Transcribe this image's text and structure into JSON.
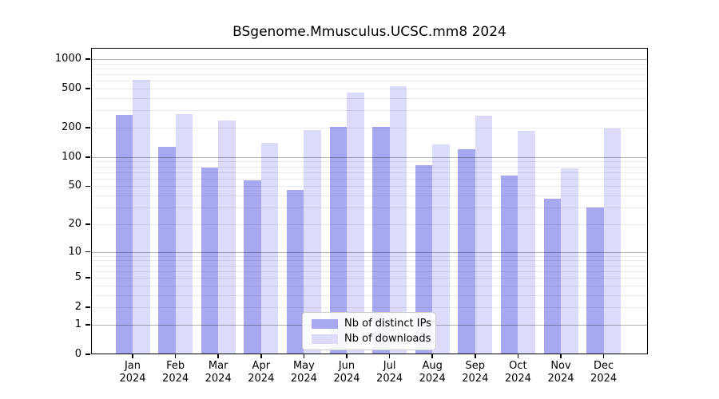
{
  "title": "BSgenome.Mmusculus.UCSC.mm8 2024",
  "colors": {
    "distinct_ips_bar": "#a8a8f0",
    "downloads_bar": "#dcdcfa",
    "axis": "#000000",
    "legend_border": "#cccccc"
  },
  "legend": {
    "items": [
      {
        "label": "Nb of distinct IPs",
        "color": "#a8a8f0"
      },
      {
        "label": "Nb of downloads",
        "color": "#dcdcfa"
      }
    ]
  },
  "chart_data": {
    "type": "bar",
    "title": "BSgenome.Mmusculus.UCSC.mm8 2024",
    "categories": [
      "Jan",
      "Feb",
      "Mar",
      "Apr",
      "May",
      "Jun",
      "Jul",
      "Aug",
      "Sep",
      "Oct",
      "Nov",
      "Dec"
    ],
    "year_label": "2024",
    "series": [
      {
        "name": "Nb of distinct IPs",
        "color": "#a8a8f0",
        "values": [
          270,
          127,
          78,
          58,
          46,
          205,
          205,
          82,
          121,
          65,
          37,
          30
        ]
      },
      {
        "name": "Nb of downloads",
        "color": "#dcdcfa",
        "values": [
          610,
          277,
          238,
          139,
          188,
          457,
          533,
          135,
          267,
          184,
          76,
          195
        ]
      }
    ],
    "yscale": "log10(1+x)",
    "yticks": [
      0,
      1,
      2,
      5,
      10,
      20,
      50,
      100,
      200,
      500,
      1000
    ],
    "ylim": [
      0,
      1300
    ],
    "grid": true,
    "legend_position": "bottom-center"
  }
}
